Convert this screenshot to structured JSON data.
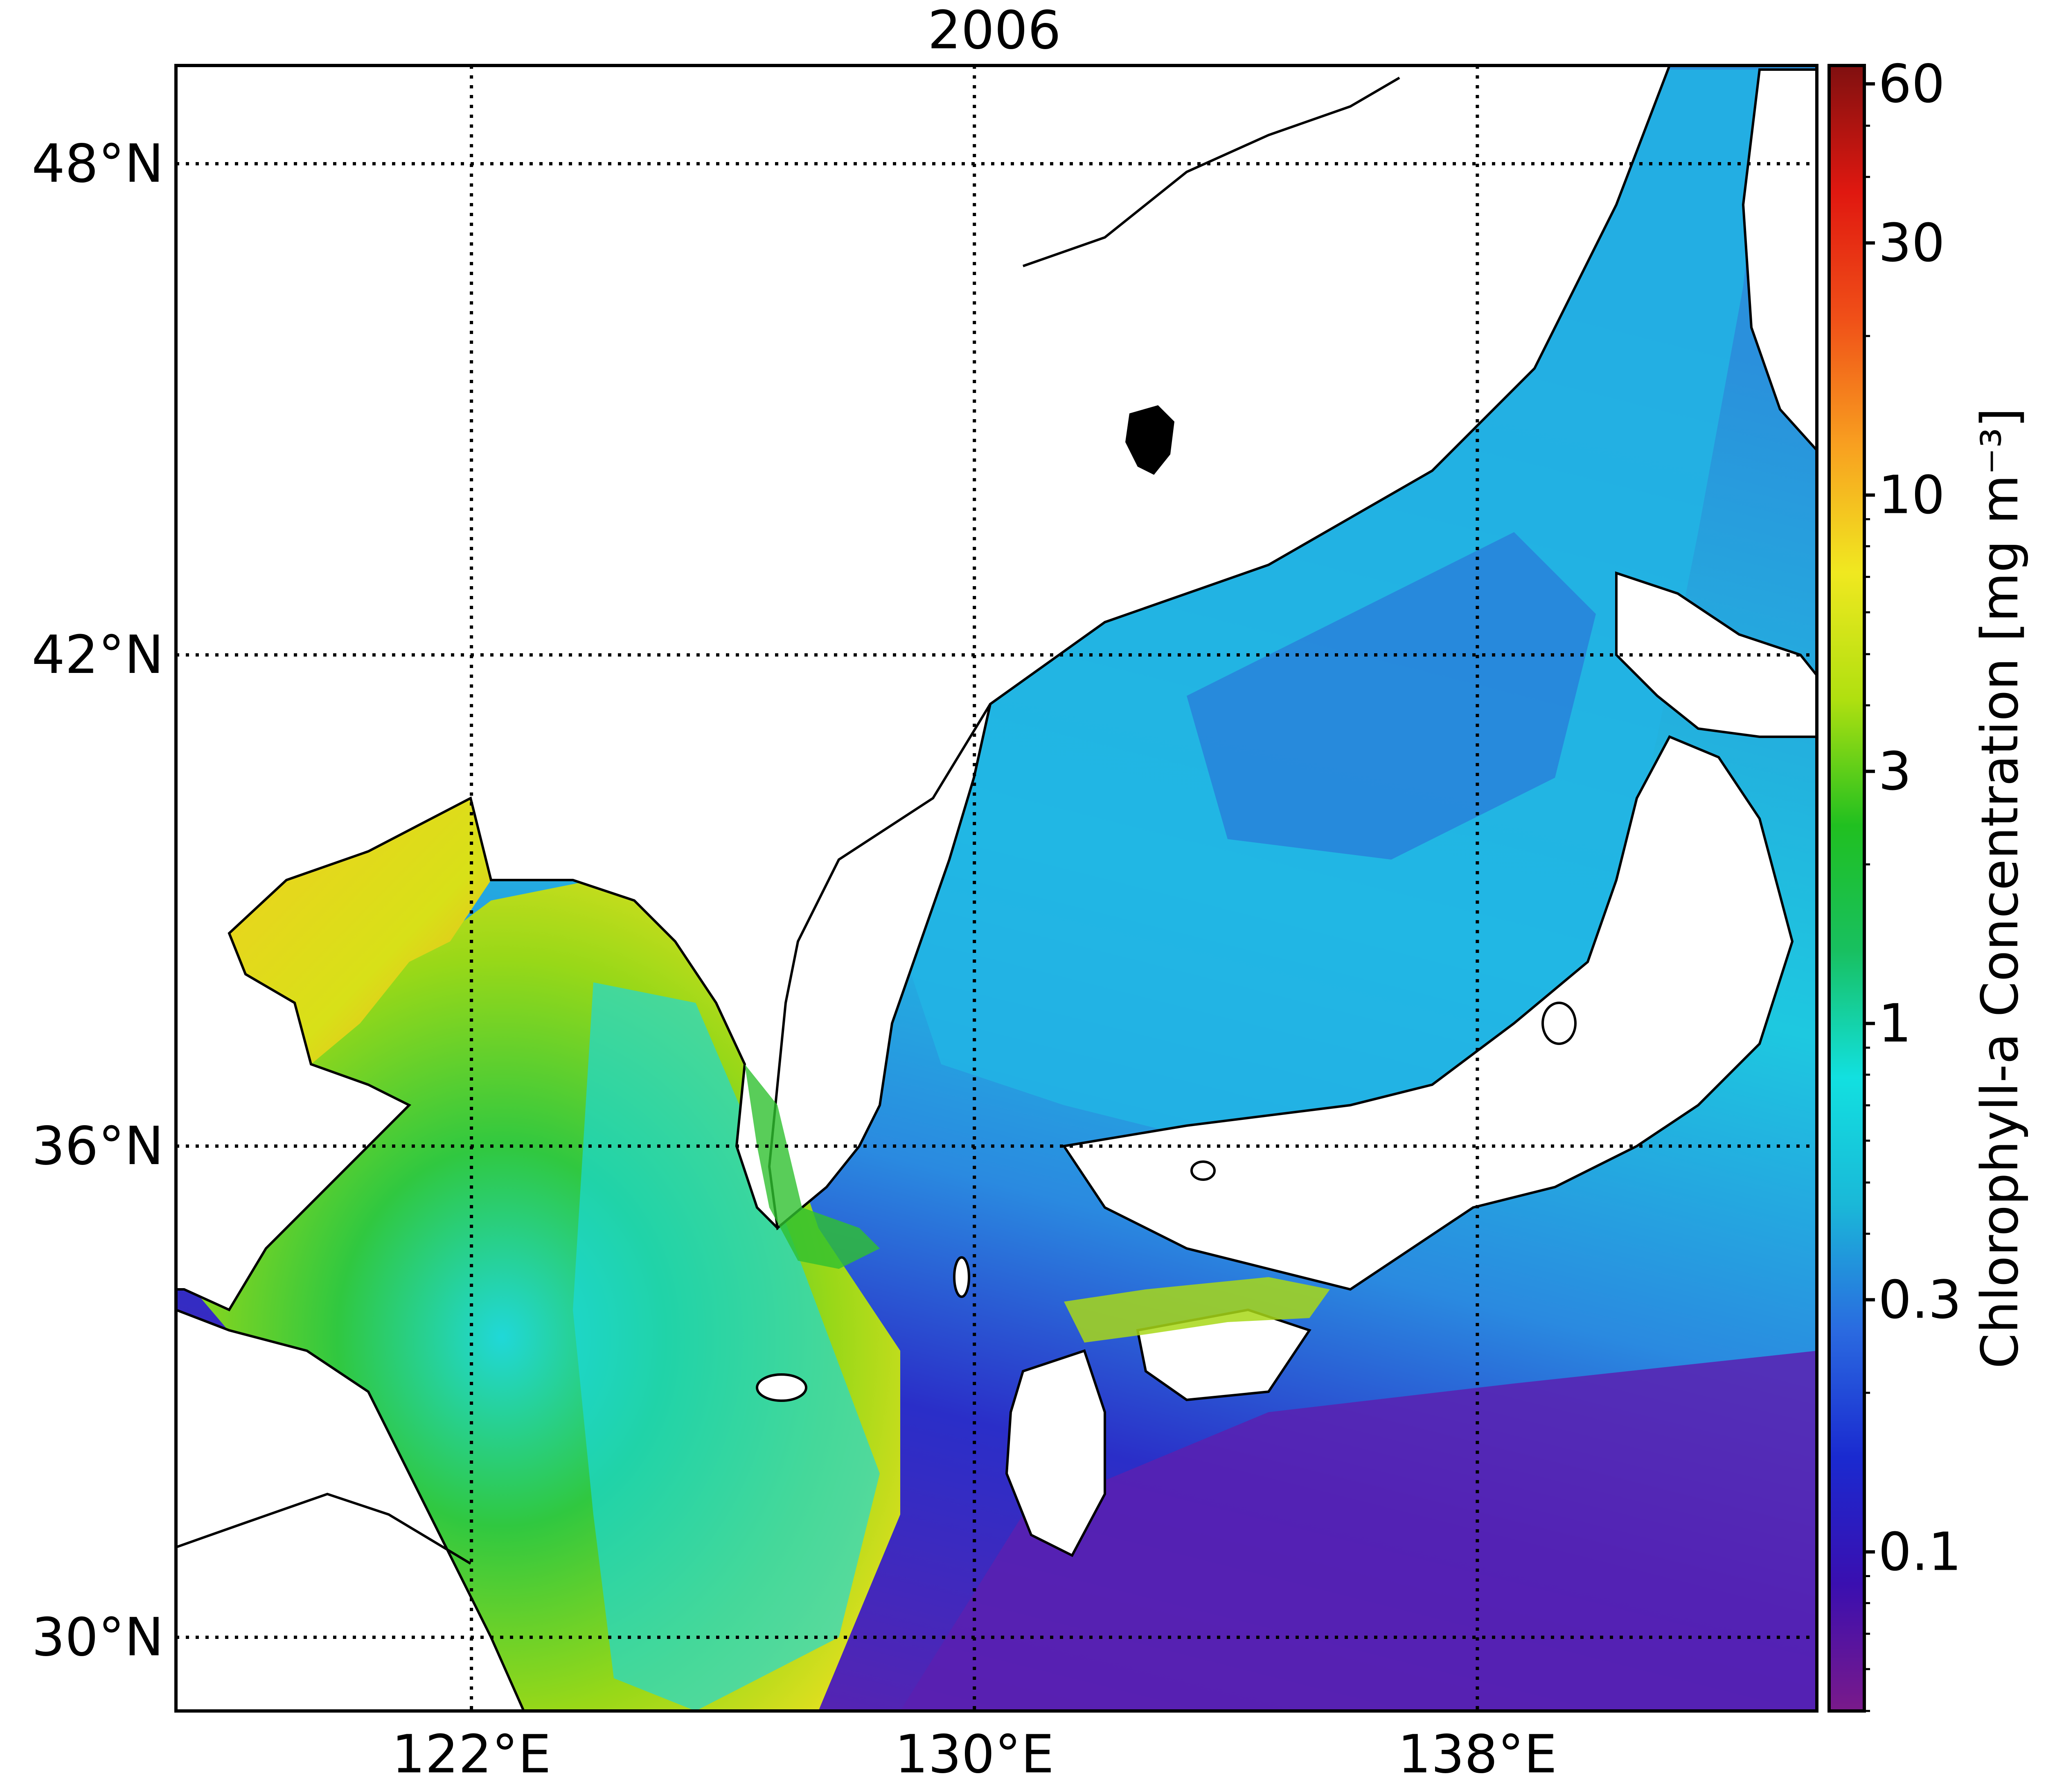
{
  "map": {
    "title": "2006",
    "lat_labels": [
      "48°N",
      "42°N",
      "36°N",
      "30°N"
    ],
    "lon_labels": [
      "122°E",
      "130°E",
      "138°E"
    ],
    "lat_values": [
      48,
      42,
      36,
      30
    ],
    "lon_values": [
      122,
      130,
      138
    ],
    "extent": {
      "lon_min": 117.3,
      "lon_max": 143.4,
      "lat_min": 29.1,
      "lat_max": 49.2
    }
  },
  "colorbar": {
    "label": "Chlorophyll-a Concentration [mg m⁻³]",
    "tick_labels": [
      "60",
      "30",
      "10",
      "3",
      "1",
      "0.3",
      "0.1"
    ],
    "tick_values": [
      60,
      30,
      10,
      3,
      1,
      0.3,
      0.1
    ],
    "range": [
      0.05,
      65
    ],
    "scale": "log",
    "colors": [
      "#7a1a8a",
      "#3a0fb0",
      "#1a2ad0",
      "#2a6ae0",
      "#1ab8d8",
      "#12e0e0",
      "#18c060",
      "#20c020",
      "#b0e010",
      "#f0e820",
      "#f8a020",
      "#f05018",
      "#e01810",
      "#801010"
    ]
  },
  "colors": {
    "land": "#ffffff",
    "coast": "#000000",
    "gridline": "#000000",
    "low_chl_deep": "#6a1fa8",
    "low_chl": "#2a2ec8",
    "mid_chl": "#2aa8e0",
    "cyan_chl": "#18d8e0",
    "green_chl": "#38c030",
    "yellow_chl": "#e8e020",
    "orange_chl": "#f4a020"
  }
}
